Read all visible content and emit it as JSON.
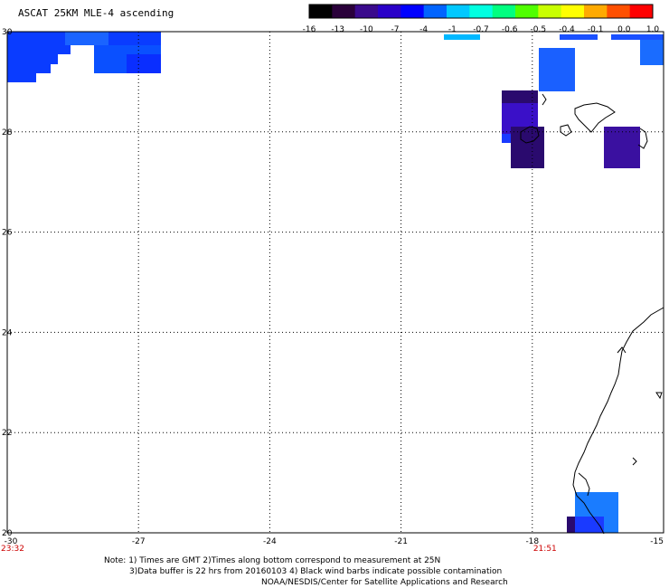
{
  "title": "ASCAT 25KM MLE-4 ascending",
  "colorbar": {
    "labels": [
      "-16",
      "-13",
      "-10",
      "-7",
      "-4",
      "-1",
      "-0.7",
      "-0.6",
      "-0.5",
      "-0.4",
      "-0.1",
      "0.0",
      "1.0"
    ],
    "colors": [
      "#000000",
      "#2a003a",
      "#3a0a8c",
      "#2a00c8",
      "#0000ff",
      "#0064ff",
      "#00c8ff",
      "#00ffe0",
      "#00ff80",
      "#50ff00",
      "#c8ff00",
      "#ffff00",
      "#ffaa00",
      "#ff5000",
      "#ff0000"
    ]
  },
  "map": {
    "lat_labels": [
      "30",
      "28",
      "26",
      "24",
      "22",
      "20"
    ],
    "lon_labels": [
      "-30",
      "-27",
      "-24",
      "-21",
      "-18",
      "-15"
    ],
    "time_labels": [
      {
        "text": "23:32",
        "lon": -30
      },
      {
        "text": "21:51",
        "lon": -18
      }
    ],
    "lat_range": [
      20,
      30
    ],
    "lon_range": [
      -30,
      -15
    ]
  },
  "notes": {
    "line1": "Note: 1) Times are GMT 2)Times along bottom correspond to measurement at 25N",
    "line2": "3)Data buffer is 22 hrs from 20160103 4) Black wind barbs indicate possible contamination",
    "line3": "NOAA/NESDIS/Center for Satellite Applications and Research"
  }
}
